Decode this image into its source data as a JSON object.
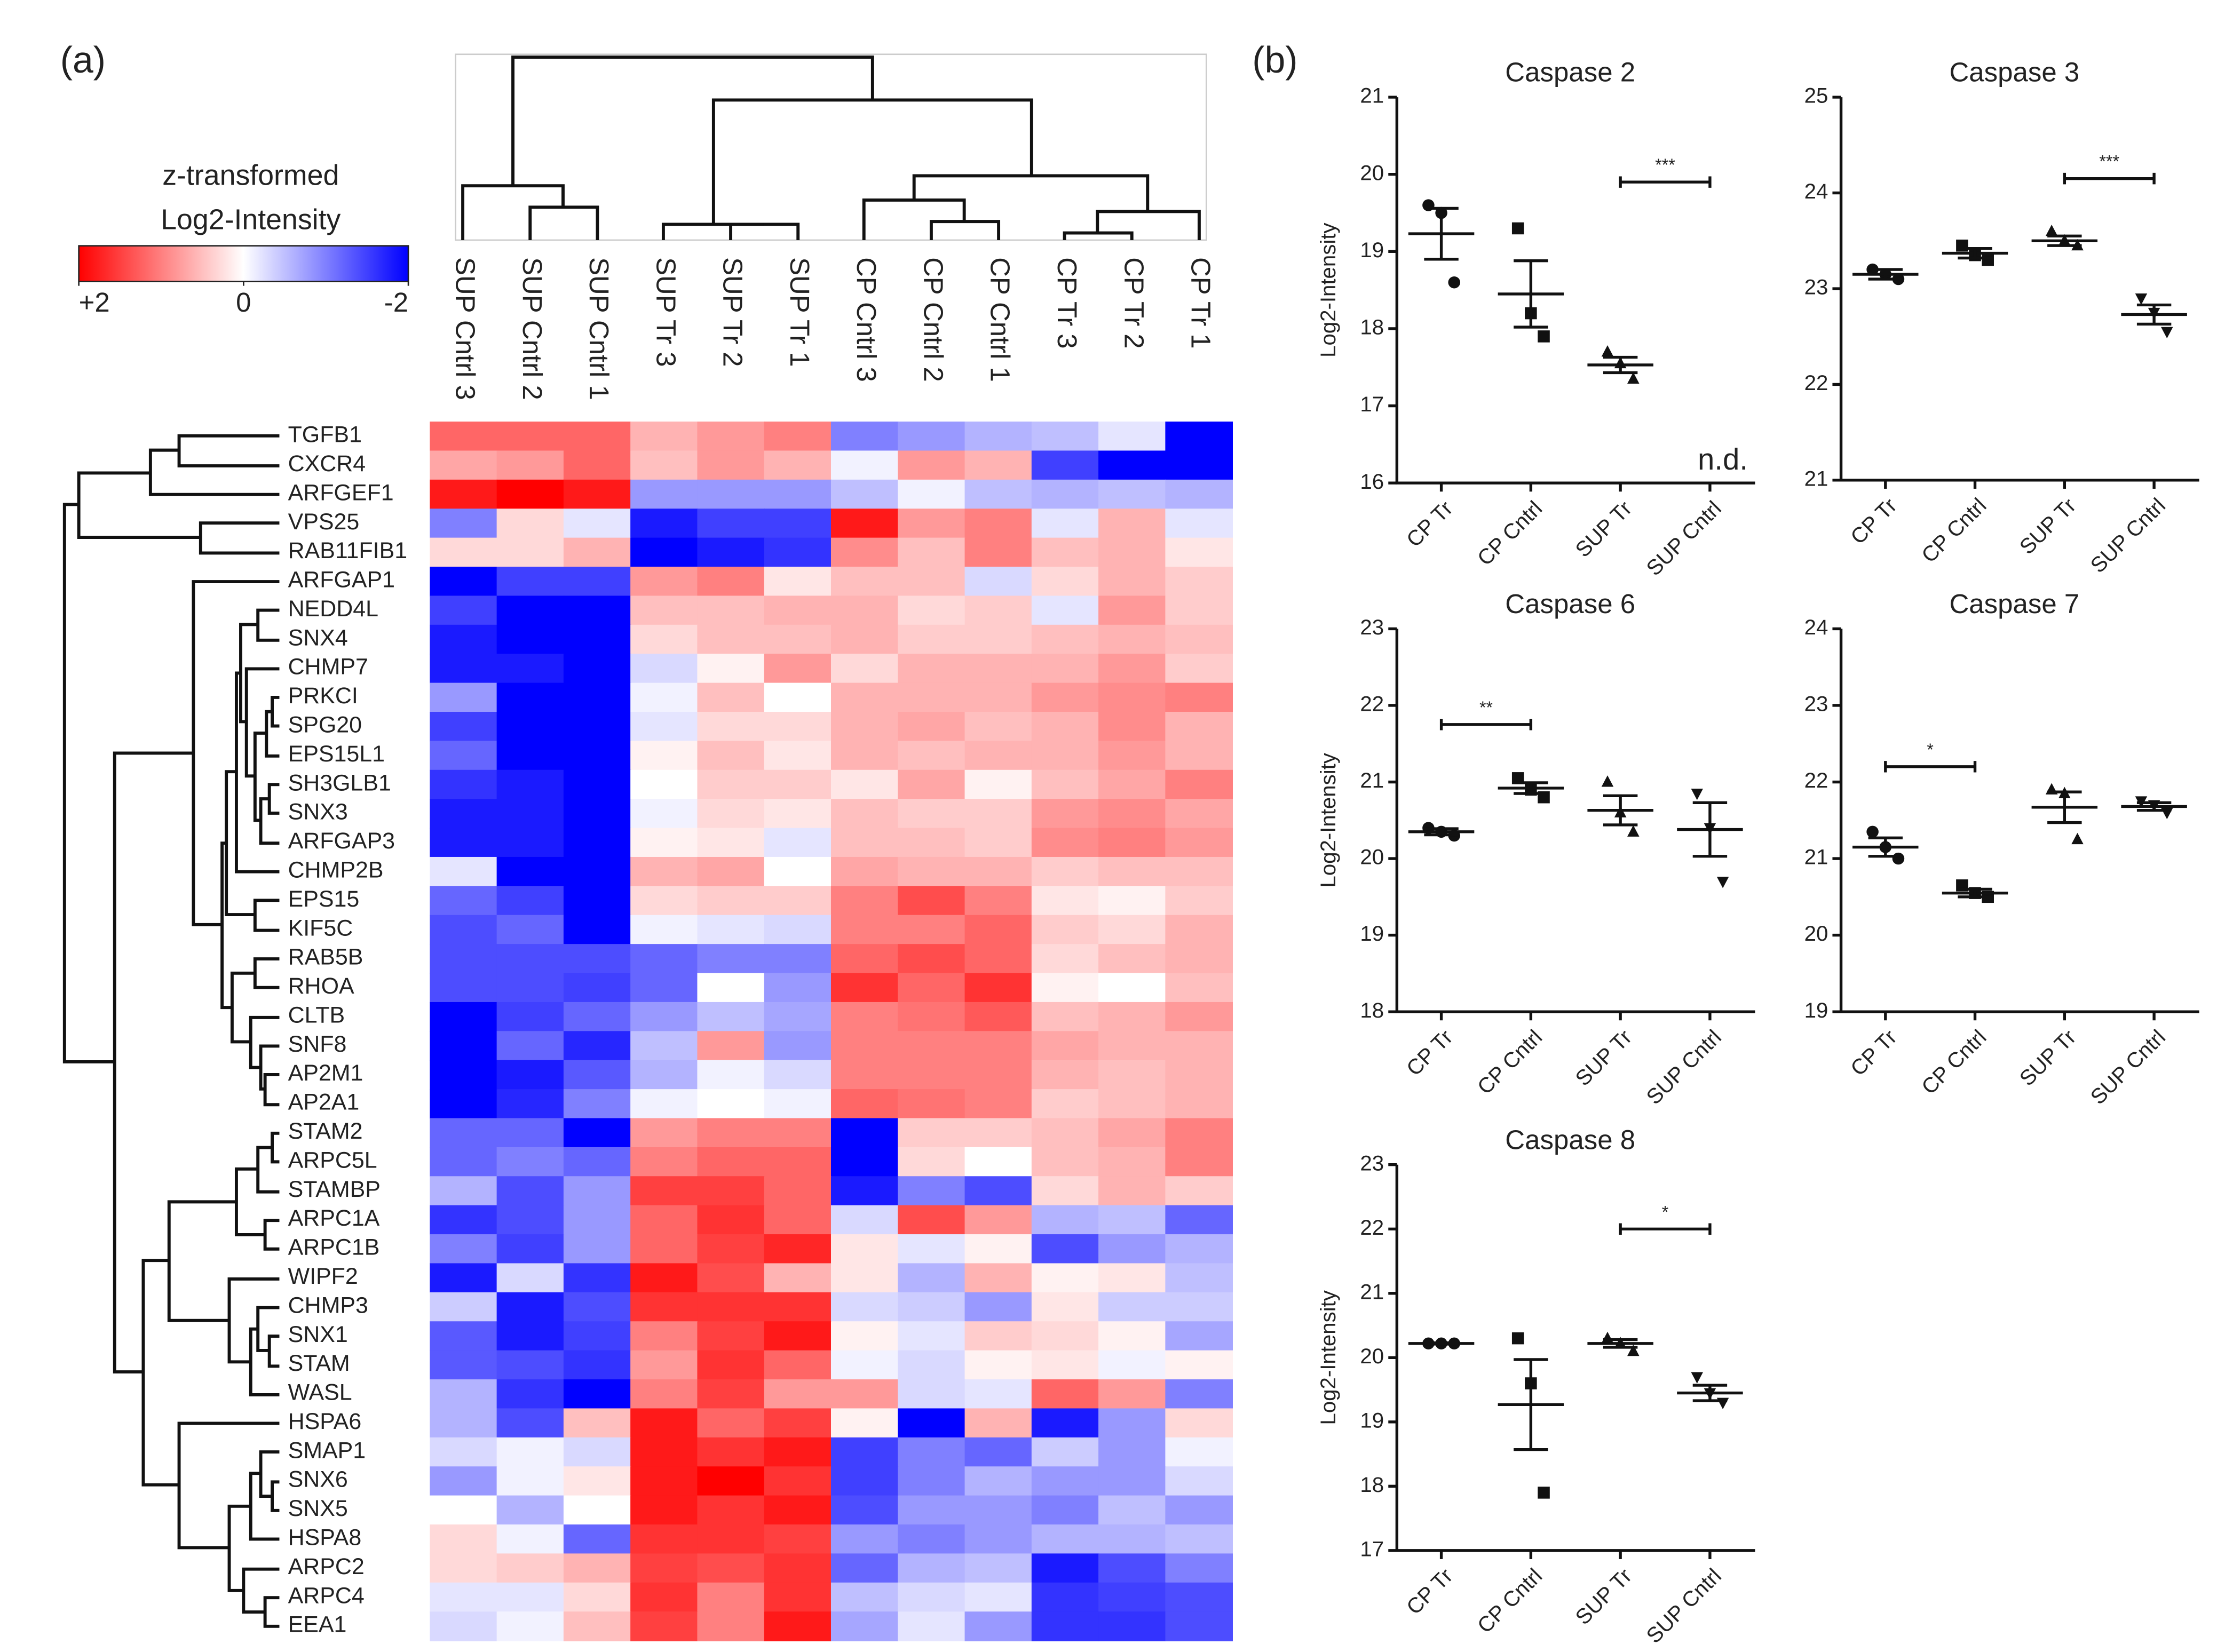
{
  "panels": [
    "(a)",
    "(b)"
  ],
  "chart_data": [
    {
      "type": "heatmap",
      "columns": [
        "SUP Cntrl 3",
        "SUP Cntrl 2",
        "SUP Cntrl 1",
        "SUP Tr 3",
        "SUP Tr 2",
        "SUP Tr 1",
        "CP Cntrl 3",
        "CP Cntrl 2",
        "CP Cntrl 1",
        "CP Tr 3",
        "CP Tr 2",
        "CP Tr 1"
      ],
      "rows": [
        "TGFB1",
        "CXCR4",
        "ARFGEF1",
        "VPS25",
        "RAB11FIB1",
        "ARFGAP1",
        "NEDD4L",
        "SNX4",
        "CHMP7",
        "PRKCI",
        "SPG20",
        "EPS15L1",
        "SH3GLB1",
        "SNX3",
        "ARFGAP3",
        "CHMP2B",
        "EPS15",
        "KIF5C",
        "RAB5B",
        "RHOA",
        "CLTB",
        "SNF8",
        "AP2M1",
        "AP2A1",
        "STAM2",
        "ARPC5L",
        "STAMBP",
        "ARPC1A",
        "ARPC1B",
        "WIPF2",
        "CHMP3",
        "SNX1",
        "STAM",
        "WASL",
        "HSPA6",
        "SMAP1",
        "SNX6",
        "SNX5",
        "HSPA8",
        "ARPC2",
        "ARPC4",
        "EEA1"
      ],
      "values": [
        [
          1.2,
          1.2,
          1.2,
          0.6,
          0.8,
          1.0,
          -1.0,
          -0.8,
          -0.6,
          -0.5,
          -0.2,
          -2
        ],
        [
          0.7,
          0.8,
          1.2,
          0.5,
          0.8,
          0.6,
          -0.1,
          0.8,
          0.6,
          -1.5,
          -2,
          -2
        ],
        [
          1.8,
          2,
          1.8,
          -0.8,
          -0.8,
          -0.8,
          -0.5,
          -0.1,
          -0.5,
          -0.6,
          -0.5,
          -0.6
        ],
        [
          -1,
          0.3,
          -0.2,
          -1.8,
          -1.5,
          -1.5,
          1.8,
          0.8,
          1,
          -0.2,
          0.6,
          -0.2
        ],
        [
          0.3,
          0.3,
          0.6,
          -2,
          -1.8,
          -1.6,
          0.9,
          0.5,
          1.0,
          0.5,
          0.6,
          0.2
        ],
        [
          -2,
          -1.5,
          -1.5,
          0.8,
          1.0,
          0.2,
          0.5,
          0.5,
          -0.3,
          0.3,
          0.6,
          0.4
        ],
        [
          -1.5,
          -2,
          -2,
          0.5,
          0.5,
          0.6,
          0.6,
          0.3,
          0.4,
          -0.2,
          0.8,
          0.4
        ],
        [
          -1.8,
          -2,
          -2,
          0.3,
          0.5,
          0.5,
          0.6,
          0.4,
          0.4,
          0.5,
          0.6,
          0.5
        ],
        [
          -1.8,
          -1.8,
          -2,
          -0.3,
          0.1,
          0.8,
          0.3,
          0.6,
          0.6,
          0.6,
          0.8,
          0.4
        ],
        [
          -0.8,
          -2,
          -2,
          -0.1,
          0.5,
          0,
          0.6,
          0.6,
          0.6,
          0.8,
          0.9,
          1.0
        ],
        [
          -1.5,
          -2,
          -2,
          -0.2,
          0.3,
          0.3,
          0.6,
          0.7,
          0.5,
          0.6,
          0.9,
          0.6
        ],
        [
          -1.2,
          -2,
          -2,
          0.1,
          0.5,
          0.2,
          0.6,
          0.5,
          0.6,
          0.6,
          0.8,
          0.6
        ],
        [
          -1.6,
          -1.8,
          -2,
          0,
          0.4,
          0.4,
          0.2,
          0.7,
          0.1,
          0.5,
          0.7,
          1.0
        ],
        [
          -1.8,
          -1.8,
          -2,
          -0.1,
          0.3,
          0.2,
          0.5,
          0.4,
          0.4,
          0.8,
          0.9,
          0.7
        ],
        [
          -1.8,
          -1.8,
          -2,
          0.1,
          0.2,
          -0.2,
          0.5,
          0.5,
          0.4,
          0.9,
          1.0,
          0.8
        ],
        [
          -0.2,
          -2,
          -2,
          0.6,
          0.7,
          0,
          0.7,
          0.6,
          0.6,
          0.4,
          0.5,
          0.5
        ],
        [
          -1.2,
          -1.5,
          -2,
          0.3,
          0.4,
          0.4,
          1.0,
          1.4,
          1.0,
          0.2,
          0.1,
          0.4
        ],
        [
          -1.4,
          -1.2,
          -2,
          -0.1,
          -0.2,
          -0.3,
          1.0,
          1.0,
          1.2,
          0.4,
          0.3,
          0.6
        ],
        [
          -1.4,
          -1.4,
          -1.4,
          -1.2,
          -1.0,
          -1.0,
          1.2,
          1.4,
          1.2,
          0.3,
          0.5,
          0.6
        ],
        [
          -1.4,
          -1.4,
          -1.5,
          -1.2,
          0,
          -0.8,
          1.6,
          1.2,
          1.6,
          0.1,
          0,
          0.5
        ],
        [
          -2,
          -1.5,
          -1.2,
          -0.8,
          -0.5,
          -0.7,
          1.0,
          1.1,
          1.3,
          0.5,
          0.6,
          0.8
        ],
        [
          -2,
          -1.2,
          -1.7,
          -0.5,
          0.8,
          -0.8,
          1.0,
          1.0,
          1.0,
          0.7,
          0.6,
          0.6
        ],
        [
          -2,
          -1.8,
          -1.3,
          -0.6,
          -0.1,
          -0.3,
          1.0,
          1.0,
          1.0,
          0.6,
          0.5,
          0.6
        ],
        [
          -2,
          -1.7,
          -1.0,
          -0.1,
          0,
          -0.1,
          1.2,
          1.1,
          1.0,
          0.4,
          0.5,
          0.6
        ],
        [
          -1.2,
          -1.2,
          -2,
          0.8,
          1.0,
          1.0,
          -2,
          0.4,
          0.4,
          0.5,
          0.7,
          1.0
        ],
        [
          -1.2,
          -1.0,
          -1.2,
          1.0,
          1.2,
          1.2,
          -2,
          0.3,
          0,
          0.5,
          0.6,
          1.0
        ],
        [
          -0.6,
          -1.4,
          -0.8,
          1.5,
          1.5,
          1.2,
          -1.8,
          -1.0,
          -1.4,
          0.3,
          0.6,
          0.4
        ],
        [
          -1.6,
          -1.4,
          -0.8,
          1.2,
          1.6,
          1.2,
          -0.3,
          1.4,
          0.8,
          -0.6,
          -0.5,
          -1.2
        ],
        [
          -1.0,
          -1.5,
          -0.8,
          1.2,
          1.5,
          1.7,
          0.2,
          -0.2,
          0.1,
          -1.4,
          -0.8,
          -0.6
        ],
        [
          -1.8,
          -0.3,
          -1.6,
          1.8,
          1.4,
          0.6,
          0.2,
          -0.6,
          0.6,
          0.1,
          0.2,
          -0.5
        ],
        [
          -0.4,
          -1.8,
          -1.4,
          1.6,
          1.6,
          1.6,
          -0.3,
          -0.4,
          -0.8,
          0.2,
          -0.4,
          -0.4
        ],
        [
          -1.3,
          -1.8,
          -1.5,
          1.0,
          1.5,
          1.8,
          0.1,
          -0.2,
          0.4,
          0.3,
          0.1,
          -0.7
        ],
        [
          -1.3,
          -1.4,
          -1.6,
          0.8,
          1.6,
          1.2,
          -0.1,
          -0.3,
          0.1,
          0.2,
          -0.1,
          0.1
        ],
        [
          -0.6,
          -1.6,
          -2,
          1.0,
          1.5,
          0.8,
          0.8,
          -0.3,
          -0.2,
          1.2,
          0.8,
          -1.0
        ],
        [
          -0.6,
          -1.4,
          0.5,
          1.8,
          1.2,
          1.5,
          0.1,
          -2,
          0.6,
          -1.8,
          -0.8,
          0.3
        ],
        [
          -0.3,
          -0.1,
          -0.3,
          1.8,
          1.6,
          1.8,
          -1.5,
          -1.0,
          -1.2,
          -0.4,
          -0.8,
          -0.1
        ],
        [
          -0.8,
          -0.1,
          0.2,
          1.8,
          2,
          1.6,
          -1.5,
          -1.0,
          -0.6,
          -0.8,
          -0.8,
          -0.3
        ],
        [
          0,
          -0.6,
          0,
          1.8,
          1.6,
          1.8,
          -1.4,
          -0.8,
          -0.8,
          -1.0,
          -0.5,
          -0.8
        ],
        [
          0.3,
          -0.1,
          -1.2,
          1.6,
          1.6,
          1.5,
          -0.8,
          -1.0,
          -0.8,
          -0.6,
          -0.6,
          -0.5
        ],
        [
          0.3,
          0.4,
          0.6,
          1.5,
          1.4,
          1.6,
          -1.2,
          -0.6,
          -0.5,
          -1.8,
          -1.4,
          -1.0
        ],
        [
          -0.2,
          -0.2,
          0.3,
          1.6,
          1.0,
          1.6,
          -0.5,
          -0.3,
          -0.2,
          -1.6,
          -1.5,
          -1.4
        ],
        [
          -0.3,
          -0.1,
          0.5,
          1.5,
          1.0,
          1.8,
          -0.7,
          -0.2,
          -0.8,
          -1.6,
          -1.6,
          -1.4
        ]
      ],
      "colorbar": {
        "title": [
          "z-transformed",
          "Log2-Intensity"
        ],
        "lim": [
          2,
          -2
        ],
        "colors": [
          "#ff0000",
          "#ffffff",
          "#0000ff"
        ],
        "ticks": [
          {
            "value": 2,
            "label": "+2"
          },
          0,
          -2
        ]
      }
    },
    {
      "type": "dot",
      "title": "Caspase 2",
      "ylabel": "Log2-Intensity",
      "categories": [
        "CP Tr",
        "CP Cntrl",
        "SUP Tr",
        "SUP Cntrl"
      ],
      "markers": [
        "circle",
        "square",
        "triangle",
        "triangle-down"
      ],
      "color": "#111111",
      "ylim": [
        16,
        21
      ],
      "yticks": [
        16,
        17,
        18,
        19,
        20,
        21
      ],
      "points": [
        [
          19.6,
          19.5,
          18.6
        ],
        [
          19.3,
          18.2,
          17.9
        ],
        [
          17.7,
          17.55,
          17.35
        ],
        [
          null,
          null,
          null
        ]
      ],
      "means": [
        19.23,
        18.45,
        17.53,
        null
      ],
      "errors": [
        0.33,
        0.43,
        0.1,
        null
      ],
      "significance": [
        {
          "between": [
            "SUP Tr",
            "SUP Cntrl"
          ],
          "value": 19.9,
          "label": "***"
        }
      ],
      "annotation": "n.d."
    },
    {
      "type": "dot",
      "title": "Caspase 3",
      "categories": [
        "CP Tr",
        "CP Cntrl",
        "SUP Tr",
        "SUP Cntrl"
      ],
      "markers": [
        "circle",
        "square",
        "triangle",
        "triangle-down"
      ],
      "color": "#111111",
      "ylim": [
        21,
        25
      ],
      "yticks": [
        21,
        22,
        23,
        24,
        25
      ],
      "points": [
        [
          23.2,
          23.15,
          23.1
        ],
        [
          23.45,
          23.35,
          23.3
        ],
        [
          23.6,
          23.5,
          23.45
        ],
        [
          22.9,
          22.75,
          22.55
        ]
      ],
      "means": [
        23.15,
        23.37,
        23.5,
        22.73
      ],
      "errors": [
        0.05,
        0.05,
        0.05,
        0.1
      ],
      "significance": [
        {
          "between": [
            "SUP Tr",
            "SUP Cntrl"
          ],
          "value": 24.15,
          "label": "***"
        }
      ]
    },
    {
      "type": "dot",
      "title": "Caspase 6",
      "ylabel": "Log2-Intensity",
      "categories": [
        "CP Tr",
        "CP Cntrl",
        "SUP Tr",
        "SUP Cntrl"
      ],
      "markers": [
        "circle",
        "square",
        "triangle",
        "triangle-down"
      ],
      "color": "#111111",
      "ylim": [
        18,
        23
      ],
      "yticks": [
        18,
        19,
        20,
        21,
        22,
        23
      ],
      "points": [
        [
          20.4,
          20.35,
          20.3
        ],
        [
          21.05,
          20.9,
          20.8
        ],
        [
          21.0,
          20.6,
          20.35
        ],
        [
          20.85,
          20.4,
          19.7
        ]
      ],
      "means": [
        20.35,
        20.92,
        20.63,
        20.38
      ],
      "errors": [
        0.04,
        0.07,
        0.19,
        0.35
      ],
      "significance": [
        {
          "between": [
            "CP Tr",
            "CP Cntrl"
          ],
          "value": 21.75,
          "label": "**"
        }
      ]
    },
    {
      "type": "dot",
      "title": "Caspase 7",
      "categories": [
        "CP Tr",
        "CP Cntrl",
        "SUP Tr",
        "SUP Cntrl"
      ],
      "markers": [
        "circle",
        "square",
        "triangle",
        "triangle-down"
      ],
      "color": "#111111",
      "ylim": [
        19,
        24
      ],
      "yticks": [
        19,
        20,
        21,
        22,
        23,
        24
      ],
      "points": [
        [
          21.35,
          21.15,
          21.0
        ],
        [
          20.65,
          20.55,
          20.5
        ],
        [
          21.9,
          21.85,
          21.25
        ],
        [
          21.75,
          21.7,
          21.6
        ]
      ],
      "means": [
        21.15,
        20.55,
        21.67,
        21.68
      ],
      "errors": [
        0.12,
        0.05,
        0.2,
        0.05
      ],
      "significance": [
        {
          "between": [
            "CP Tr",
            "CP Cntrl"
          ],
          "value": 22.2,
          "label": "*"
        }
      ]
    },
    {
      "type": "dot",
      "title": "Caspase 8",
      "ylabel": "Log2-Intensity",
      "categories": [
        "CP Tr",
        "CP Cntrl",
        "SUP Tr",
        "SUP Cntrl"
      ],
      "markers": [
        "circle",
        "square",
        "triangle",
        "triangle-down"
      ],
      "color": "#111111",
      "ylim": [
        17,
        23
      ],
      "yticks": [
        17,
        18,
        19,
        20,
        21,
        22,
        23
      ],
      "points": [
        [
          20.22,
          20.22,
          20.22
        ],
        [
          20.3,
          19.6,
          17.9
        ],
        [
          20.3,
          20.22,
          20.1
        ],
        [
          19.7,
          19.45,
          19.3
        ]
      ],
      "means": [
        20.22,
        19.27,
        20.22,
        19.45
      ],
      "errors": [
        0.01,
        0.7,
        0.06,
        0.12
      ],
      "significance": [
        {
          "between": [
            "SUP Tr",
            "SUP Cntrl"
          ],
          "value": 22.0,
          "label": "*"
        }
      ]
    }
  ]
}
